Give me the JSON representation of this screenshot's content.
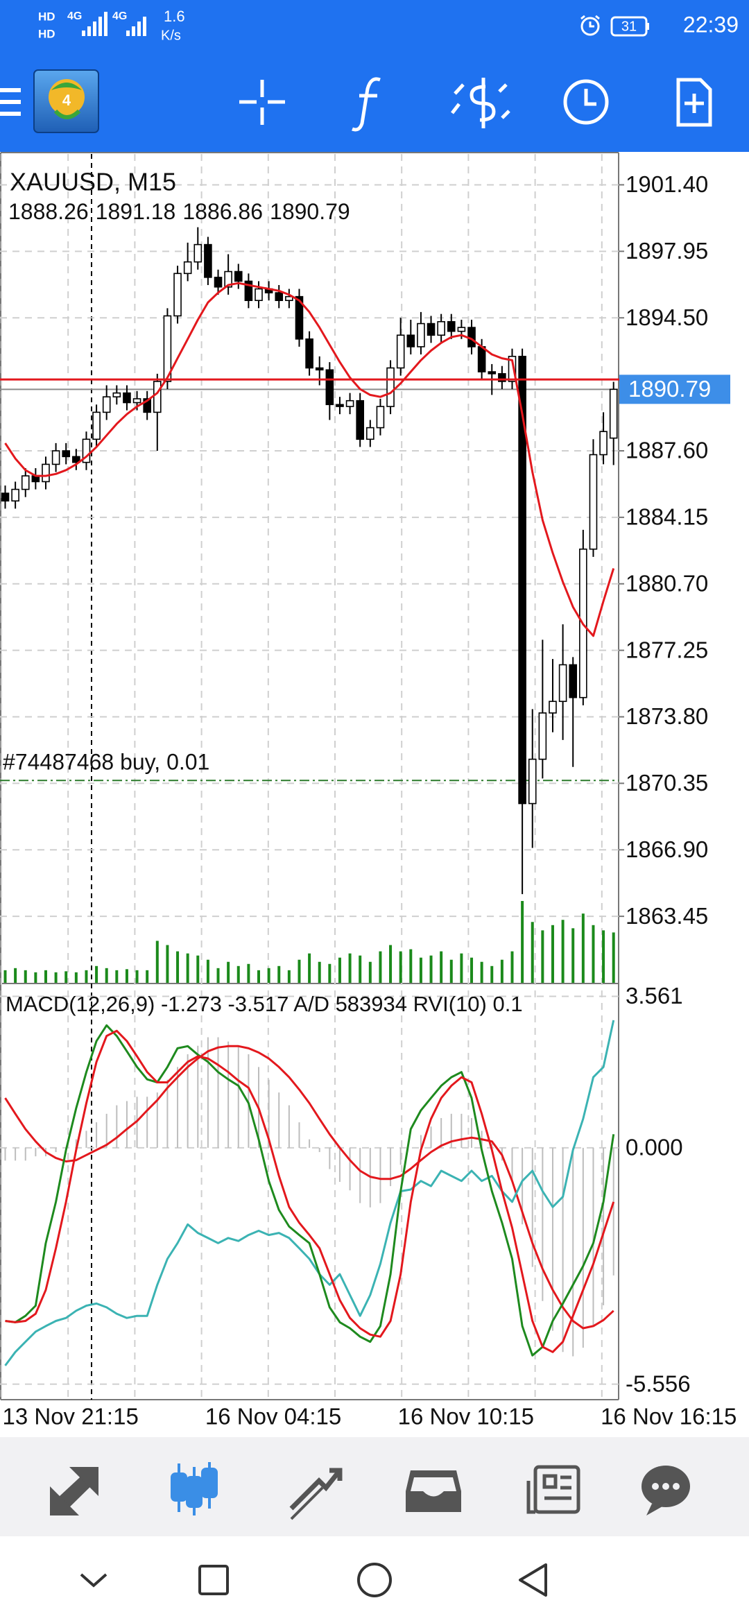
{
  "status_bar": {
    "hd": "HD",
    "signal_1": "4G",
    "signal_2": "4G",
    "speed": "1.6",
    "speed_unit": "K/s",
    "battery": "31",
    "time": "22:39"
  },
  "toolbar": {
    "logo_badge": "4"
  },
  "chart_data": {
    "type": "candlestick",
    "title": "XAUUSD, M15",
    "categories": [
      "13 Nov 21:15",
      null,
      null,
      null,
      null,
      null,
      null,
      null,
      null,
      null,
      null,
      null,
      null,
      null,
      null,
      null,
      null,
      null,
      null,
      null,
      "16 Nov 04:15",
      null,
      null,
      null,
      null,
      null,
      null,
      null,
      null,
      null,
      null,
      null,
      null,
      null,
      null,
      null,
      null,
      null,
      null,
      "16 Nov 10:15",
      null,
      null,
      null,
      null,
      null,
      null,
      null,
      null,
      null,
      null,
      null,
      null,
      null,
      null,
      null,
      null,
      null,
      null,
      null,
      "16 Nov 16:15",
      null
    ],
    "open": [
      1885.4,
      1885.0,
      1885.6,
      1886.3,
      1886.0,
      1886.9,
      1887.6,
      1887.3,
      1887.0,
      1888.2,
      1889.6,
      1890.4,
      1890.6,
      1890.1,
      1890.3,
      1889.6,
      1891.2,
      1894.6,
      1896.8,
      1897.4,
      1898.3,
      1896.6,
      1896.1,
      1896.9,
      1896.4,
      1895.4,
      1896.0,
      1895.8,
      1895.4,
      1895.6,
      1893.4,
      1891.9,
      1891.8,
      1890.0,
      1889.9,
      1890.2,
      1888.2,
      1888.8,
      1889.9,
      1891.9,
      1893.6,
      1893.0,
      1894.2,
      1893.6,
      1894.3,
      1893.8,
      1894.0,
      1893.0,
      1891.7,
      1891.6,
      1891.2,
      1892.5,
      1869.3,
      1871.6,
      1874.0,
      1874.6,
      1876.5,
      1874.8,
      1882.5,
      1887.4,
      1888.26
    ],
    "high": [
      1885.8,
      1886.0,
      1886.7,
      1886.7,
      1887.3,
      1888.0,
      1888.0,
      1887.7,
      1888.6,
      1890.0,
      1891.0,
      1891.0,
      1891.0,
      1890.7,
      1890.7,
      1891.6,
      1895.0,
      1897.2,
      1898.4,
      1899.2,
      1898.7,
      1897.0,
      1897.8,
      1897.3,
      1896.8,
      1896.4,
      1896.4,
      1896.2,
      1896.0,
      1896.0,
      1893.8,
      1892.5,
      1892.2,
      1890.4,
      1890.6,
      1890.6,
      1889.2,
      1890.3,
      1892.3,
      1894.5,
      1894.4,
      1894.8,
      1894.6,
      1894.7,
      1894.7,
      1894.4,
      1894.4,
      1893.4,
      1892.1,
      1892.0,
      1892.9,
      1892.9,
      1874.2,
      1877.8,
      1876.8,
      1878.6,
      1876.9,
      1883.5,
      1888.2,
      1889.6,
      1891.18
    ],
    "low": [
      1884.6,
      1884.6,
      1885.2,
      1885.6,
      1885.6,
      1886.5,
      1886.9,
      1886.6,
      1886.6,
      1887.8,
      1889.2,
      1890.0,
      1889.7,
      1889.7,
      1889.2,
      1887.6,
      1890.8,
      1894.2,
      1896.4,
      1897.0,
      1896.2,
      1895.7,
      1895.7,
      1896.0,
      1895.0,
      1895.0,
      1895.4,
      1895.0,
      1895.0,
      1893.0,
      1891.5,
      1891.0,
      1889.2,
      1889.5,
      1889.5,
      1887.8,
      1887.8,
      1888.4,
      1889.5,
      1891.5,
      1892.6,
      1892.6,
      1893.2,
      1893.2,
      1893.4,
      1893.4,
      1892.6,
      1891.3,
      1890.5,
      1890.8,
      1890.8,
      1864.6,
      1867.0,
      1870.6,
      1873.0,
      1872.6,
      1871.2,
      1874.4,
      1882.1,
      1886.9,
      1886.86
    ],
    "close": [
      1885.0,
      1885.6,
      1886.3,
      1886.0,
      1886.9,
      1887.6,
      1887.3,
      1887.0,
      1888.2,
      1889.6,
      1890.4,
      1890.6,
      1890.1,
      1890.3,
      1889.6,
      1891.2,
      1894.6,
      1896.8,
      1897.4,
      1898.3,
      1896.6,
      1896.1,
      1896.9,
      1896.4,
      1895.4,
      1896.0,
      1895.8,
      1895.4,
      1895.6,
      1893.4,
      1891.9,
      1891.8,
      1890.0,
      1889.9,
      1890.2,
      1888.2,
      1888.8,
      1889.9,
      1891.9,
      1893.6,
      1893.0,
      1894.2,
      1893.6,
      1894.3,
      1893.8,
      1894.0,
      1893.0,
      1891.7,
      1891.6,
      1891.2,
      1892.5,
      1869.3,
      1871.6,
      1874.0,
      1874.6,
      1876.5,
      1874.8,
      1882.5,
      1887.4,
      1888.6,
      1890.79
    ],
    "ma": {
      "color": "#e3181d",
      "values": [
        1888.0,
        1887.2,
        1886.6,
        1886.3,
        1886.3,
        1886.4,
        1886.6,
        1886.9,
        1887.3,
        1887.8,
        1888.4,
        1889.0,
        1889.5,
        1889.9,
        1890.2,
        1890.6,
        1891.4,
        1892.4,
        1893.4,
        1894.4,
        1895.3,
        1895.8,
        1896.2,
        1896.3,
        1896.2,
        1896.1,
        1896.0,
        1895.9,
        1895.7,
        1895.4,
        1894.8,
        1894.0,
        1893.1,
        1892.2,
        1891.4,
        1890.8,
        1890.5,
        1890.4,
        1890.6,
        1891.1,
        1891.7,
        1892.3,
        1892.8,
        1893.2,
        1893.5,
        1893.6,
        1893.4,
        1893.0,
        1892.6,
        1892.4,
        1892.3,
        1889.5,
        1886.5,
        1884.0,
        1882.3,
        1880.8,
        1879.5,
        1878.6,
        1878.0,
        1879.8,
        1881.5
      ]
    },
    "volume": {
      "color": "#1b8a1b",
      "values": [
        120,
        140,
        120,
        100,
        120,
        100,
        110,
        100,
        120,
        160,
        140,
        120,
        130,
        120,
        120,
        400,
        360,
        300,
        280,
        260,
        220,
        140,
        200,
        160,
        180,
        120,
        140,
        160,
        120,
        220,
        280,
        200,
        180,
        240,
        280,
        260,
        200,
        300,
        360,
        300,
        320,
        240,
        260,
        300,
        220,
        280,
        240,
        200,
        160,
        220,
        300,
        780,
        580,
        500,
        550,
        600,
        520,
        660,
        550,
        500,
        480
      ]
    },
    "bull_color": "#ffffff",
    "bear_color": "#000000",
    "ask_line": {
      "value": 1891.3,
      "color": "#e3181d"
    },
    "price_tag_color": "#3d8ee8",
    "order": {
      "label": "#74487468 buy, 0.01",
      "value": 1870.5,
      "color": "#2a7a2a"
    },
    "ylim": [
      1860.0,
      1903.0
    ],
    "yticks": [
      {
        "value": 1901.4,
        "label": "1901.40"
      },
      1897.95,
      {
        "value": 1894.5,
        "label": "1894.50"
      },
      {
        "value": 1887.6,
        "label": "1887.60"
      },
      1884.15,
      {
        "value": 1880.7,
        "label": "1880.70"
      },
      1877.25,
      {
        "value": 1873.8,
        "label": "1873.80"
      },
      1870.35,
      {
        "value": 1866.9,
        "label": "1866.90"
      },
      1863.45
    ],
    "grid": true,
    "indicator": {
      "type": "line",
      "title": "MACD(12,26,9) -1.273 -3.517 A/D 583934 RVI(10) 0.1",
      "ylim": [
        -5.92,
        3.83
      ],
      "yticks": [
        3.561,
        {
          "value": 0,
          "label": "0.000"
        },
        -5.556
      ],
      "histogram": {
        "color": "#bdbdbd",
        "values": [
          -0.3,
          -0.3,
          -0.3,
          -0.2,
          -0.2,
          -0.1,
          0.0,
          0.2,
          0.4,
          0.6,
          0.8,
          1.0,
          1.1,
          1.2,
          1.2,
          1.3,
          1.6,
          1.9,
          2.2,
          2.4,
          2.6,
          2.6,
          2.5,
          2.4,
          2.2,
          1.9,
          1.6,
          1.3,
          1.0,
          0.6,
          0.2,
          -0.1,
          -0.5,
          -0.8,
          -1.0,
          -1.3,
          -1.4,
          -1.3,
          -0.9,
          -0.4,
          0.0,
          0.3,
          0.5,
          0.7,
          0.8,
          0.8,
          0.7,
          0.4,
          0.1,
          -0.3,
          -0.8,
          -1.8,
          -2.8,
          -3.6,
          -4.3,
          -4.8,
          -4.9,
          -4.7,
          -4.2,
          -3.7,
          -3.0
        ]
      },
      "series": [
        {
          "color": "#e3181d",
          "values": [
            1.17,
            0.8,
            0.44,
            0.15,
            -0.1,
            -0.24,
            -0.32,
            -0.29,
            -0.17,
            -0.05,
            0.07,
            0.24,
            0.44,
            0.63,
            0.88,
            1.12,
            1.41,
            1.66,
            1.9,
            2.1,
            2.27,
            2.36,
            2.39,
            2.39,
            2.34,
            2.24,
            2.1,
            1.9,
            1.66,
            1.37,
            1.05,
            0.68,
            0.32,
            0.0,
            -0.29,
            -0.54,
            -0.68,
            -0.73,
            -0.73,
            -0.66,
            -0.49,
            -0.29,
            -0.1,
            0.05,
            0.15,
            0.2,
            0.24,
            0.2,
            0.15,
            -0.17,
            -0.78,
            -1.51,
            -2.24,
            -2.85,
            -3.34,
            -3.75,
            -4.07,
            -4.24,
            -4.19,
            -4.05,
            -3.83
          ]
        },
        {
          "color": "#3bb3b3",
          "values": [
            -5.12,
            -4.8,
            -4.56,
            -4.32,
            -4.19,
            -4.07,
            -4.0,
            -3.83,
            -3.71,
            -3.66,
            -3.75,
            -3.9,
            -4.0,
            -3.95,
            -3.95,
            -3.22,
            -2.61,
            -2.24,
            -1.8,
            -2.0,
            -2.12,
            -2.24,
            -2.12,
            -2.19,
            -2.05,
            -1.95,
            -2.05,
            -2.0,
            -2.12,
            -2.36,
            -2.61,
            -2.97,
            -3.22,
            -2.97,
            -3.46,
            -3.95,
            -3.46,
            -2.73,
            -1.76,
            -1.02,
            -0.98,
            -0.78,
            -0.9,
            -0.54,
            -0.66,
            -0.78,
            -0.54,
            -0.78,
            -0.66,
            -1.02,
            -1.27,
            -0.78,
            -0.54,
            -1.02,
            -1.39,
            -1.15,
            -0.05,
            0.68,
            1.66,
            1.9,
            3.0
          ]
        },
        {
          "color": "#1e8a1e",
          "values": [
            -4.07,
            -4.1,
            -3.95,
            -3.71,
            -2.24,
            -1.27,
            -0.05,
            0.93,
            1.78,
            2.51,
            2.88,
            2.63,
            2.27,
            1.9,
            1.61,
            1.54,
            1.9,
            2.34,
            2.39,
            2.19,
            2.02,
            1.78,
            1.61,
            1.46,
            1.05,
            0.2,
            -0.78,
            -1.46,
            -1.85,
            -2.05,
            -2.24,
            -2.97,
            -3.75,
            -4.1,
            -4.24,
            -4.44,
            -4.56,
            -4.19,
            -2.97,
            -1.02,
            0.44,
            0.88,
            1.17,
            1.46,
            1.66,
            1.78,
            1.17,
            -0.05,
            -1.02,
            -1.76,
            -2.61,
            -4.19,
            -4.88,
            -4.68,
            -4.07,
            -3.66,
            -3.22,
            -2.78,
            -2.24,
            -1.27,
            0.32
          ]
        },
        {
          "color": "#e3181d",
          "values": [
            -4.07,
            -4.1,
            -4.07,
            -3.9,
            -3.34,
            -2.36,
            -1.27,
            -0.05,
            1.05,
            2.02,
            2.63,
            2.75,
            2.51,
            2.15,
            1.78,
            1.54,
            1.54,
            1.78,
            2.02,
            2.15,
            2.1,
            1.95,
            1.78,
            1.58,
            1.41,
            0.93,
            0.2,
            -0.66,
            -1.39,
            -1.76,
            -2.05,
            -2.36,
            -2.97,
            -3.58,
            -4.0,
            -4.24,
            -4.39,
            -4.44,
            -4.07,
            -2.97,
            -1.27,
            -0.05,
            0.68,
            1.17,
            1.46,
            1.66,
            1.54,
            0.8,
            -0.05,
            -1.02,
            -1.88,
            -2.97,
            -4.07,
            -4.68,
            -4.8,
            -4.56,
            -3.95,
            -3.34,
            -2.73,
            -2.0,
            -1.27
          ]
        }
      ]
    }
  }
}
